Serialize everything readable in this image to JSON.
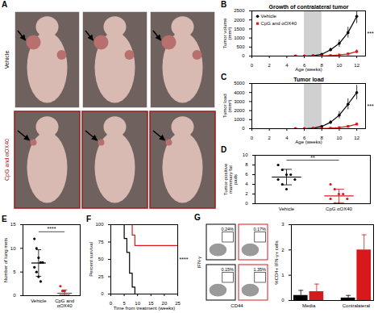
{
  "panel_A": {
    "letter": "A",
    "rows": [
      {
        "label": "Vehicle",
        "color": "#000000",
        "border": "#ffffff",
        "photos": 3
      },
      {
        "label": "CpG and αOX40",
        "color": "#a01818",
        "border": "#a01818",
        "photos": 3
      }
    ]
  },
  "panel_G_flow": {
    "y_label": "IFN-γ",
    "x_label": "CD44",
    "column_colors": [
      "#000000",
      "#d7191c"
    ],
    "gates": [
      [
        "0.24%",
        "0.17%"
      ],
      [
        "0.15%",
        "1.35%"
      ]
    ]
  },
  "chart_data": [
    {
      "panel": "B",
      "type": "line",
      "title": "Growth of contralateral tumor",
      "x_label": "Age (weeks)",
      "y_label": "Tumor volume (mm³)",
      "x": [
        5,
        6,
        7,
        8,
        9,
        10,
        11,
        12
      ],
      "series": [
        {
          "name": "Vehicle",
          "color": "#000000",
          "marker": "circle",
          "values": [
            0,
            0,
            20,
            100,
            350,
            700,
            1300,
            2200
          ],
          "errors": [
            0,
            0,
            10,
            40,
            100,
            200,
            300,
            400
          ]
        },
        {
          "name": "CpG and αOX40",
          "color": "#d7191c",
          "marker": "square",
          "values": [
            0,
            0,
            0,
            10,
            30,
            60,
            120,
            250
          ],
          "errors": [
            0,
            0,
            0,
            5,
            15,
            30,
            60,
            100
          ]
        }
      ],
      "xlim": [
        0,
        13
      ],
      "xticks": [
        0,
        2,
        4,
        6,
        8,
        10,
        12
      ],
      "ylim": [
        0,
        2500
      ],
      "yticks": [
        0,
        500,
        1000,
        1500,
        2000,
        2500
      ],
      "shade": [
        6,
        8
      ],
      "annotation": "***",
      "legend": "top-left"
    },
    {
      "panel": "C",
      "type": "line",
      "title": "Tumor load",
      "x_label": "Age (weeks)",
      "y_label": "Tumor load (mm³)",
      "x": [
        5,
        6,
        7,
        8,
        9,
        10,
        11,
        12
      ],
      "series": [
        {
          "name": "Vehicle",
          "color": "#000000",
          "marker": "circle",
          "values": [
            0,
            0,
            50,
            250,
            700,
            1500,
            2700,
            4000
          ],
          "errors": [
            0,
            0,
            20,
            80,
            200,
            400,
            600,
            800
          ]
        },
        {
          "name": "CpG and αOX40",
          "color": "#d7191c",
          "marker": "square",
          "values": [
            0,
            0,
            0,
            20,
            60,
            120,
            250,
            500
          ],
          "errors": [
            0,
            0,
            0,
            10,
            30,
            50,
            100,
            150
          ]
        }
      ],
      "xlim": [
        0,
        13
      ],
      "xticks": [
        0,
        2,
        4,
        6,
        8,
        10,
        12
      ],
      "ylim": [
        0,
        5000
      ],
      "yticks": [
        0,
        1000,
        2000,
        3000,
        4000,
        5000
      ],
      "shade": [
        6,
        8
      ],
      "annotation": "***"
    },
    {
      "panel": "D",
      "type": "dot",
      "y_label": "Tumor-positive mammary fat pads",
      "categories": [
        "Vehicle",
        "CpG αOX40"
      ],
      "colors": [
        "#000000",
        "#d7191c"
      ],
      "values": [
        [
          8,
          7,
          6,
          6,
          5,
          5,
          4,
          3
        ],
        [
          4,
          3,
          2,
          2,
          1,
          1,
          0,
          0
        ]
      ],
      "mean": [
        5.5,
        1.6
      ],
      "sd": [
        1.6,
        1.4
      ],
      "ylim": [
        0,
        10
      ],
      "yticks": [
        0,
        2,
        4,
        6,
        8,
        10
      ],
      "annotation": "**"
    },
    {
      "panel": "E",
      "type": "dot",
      "y_label": "Number of lung mets",
      "categories": [
        "Vehicle",
        "CpG and αOX40"
      ],
      "colors": [
        "#000000",
        "#d7191c"
      ],
      "values": [
        [
          12,
          10,
          8,
          7,
          7,
          6,
          5,
          4,
          3
        ],
        [
          2,
          1,
          1,
          0,
          0,
          0,
          0,
          0
        ]
      ],
      "mean": [
        6.9,
        0.5
      ],
      "sd": [
        2.8,
        0.7
      ],
      "ylim": [
        0,
        15
      ],
      "yticks": [
        0,
        5,
        10,
        15
      ],
      "annotation": "****"
    },
    {
      "panel": "F",
      "type": "step",
      "x_label": "Time from treatment (weeks)",
      "y_label": "Percent survival",
      "series": [
        {
          "name": "Vehicle",
          "color": "#000000",
          "x": [
            0,
            4,
            5,
            6,
            7,
            8,
            9
          ],
          "values": [
            100,
            100,
            80,
            60,
            30,
            10,
            0
          ]
        },
        {
          "name": "CpG and αOX40",
          "color": "#d7191c",
          "x": [
            0,
            7,
            8,
            9,
            25
          ],
          "values": [
            100,
            100,
            85,
            70,
            70
          ]
        }
      ],
      "xlim": [
        0,
        25
      ],
      "xticks": [
        0,
        5,
        10,
        15,
        20,
        25
      ],
      "ylim": [
        0,
        100
      ],
      "yticks": [
        0,
        25,
        50,
        75,
        100
      ],
      "annotation": "****"
    },
    {
      "panel": "G",
      "type": "bar",
      "y_label": "%CD4+ IFN-γ+ cells",
      "categories": [
        "Media",
        "Contralateral"
      ],
      "series": [
        {
          "color": "#000000",
          "values": [
            0.2,
            0.1
          ],
          "errors": [
            0.2,
            0.1
          ]
        },
        {
          "color": "#d7191c",
          "values": [
            0.35,
            2.0
          ],
          "errors": [
            0.3,
            0.6
          ]
        }
      ],
      "ylim": [
        0,
        3
      ],
      "yticks": [
        0,
        1,
        2,
        3
      ]
    }
  ]
}
